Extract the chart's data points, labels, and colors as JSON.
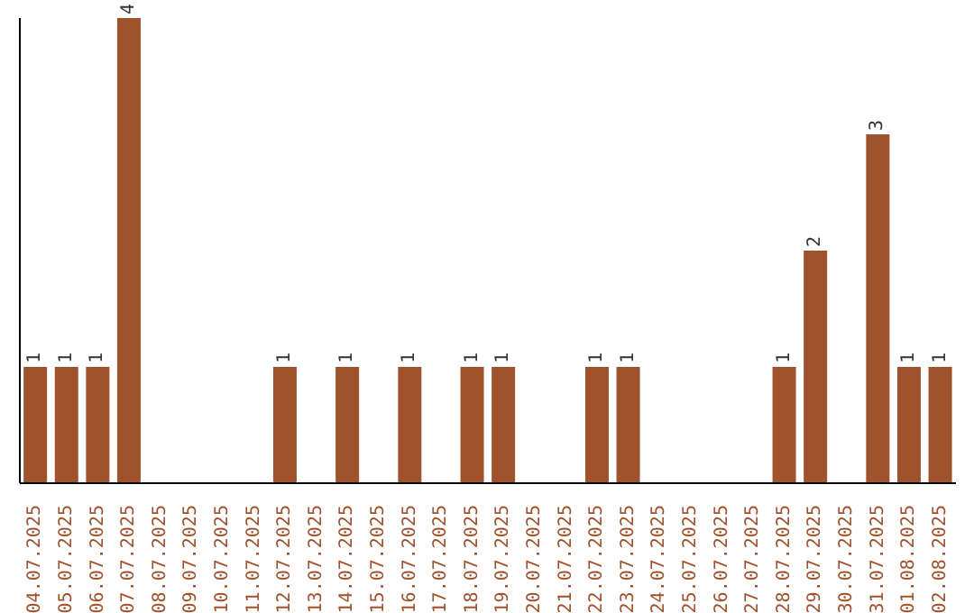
{
  "chart_data": {
    "type": "bar",
    "categories": [
      "04.07.2025",
      "05.07.2025",
      "06.07.2025",
      "07.07.2025",
      "08.07.2025",
      "09.07.2025",
      "10.07.2025",
      "11.07.2025",
      "12.07.2025",
      "13.07.2025",
      "14.07.2025",
      "15.07.2025",
      "16.07.2025",
      "17.07.2025",
      "18.07.2025",
      "19.07.2025",
      "20.07.2025",
      "21.07.2025",
      "22.07.2025",
      "23.07.2025",
      "24.07.2025",
      "25.07.2025",
      "26.07.2025",
      "27.07.2025",
      "28.07.2025",
      "29.07.2025",
      "30.07.2025",
      "31.07.2025",
      "01.08.2025",
      "02.08.2025"
    ],
    "values": [
      1,
      1,
      1,
      4,
      0,
      0,
      0,
      0,
      1,
      0,
      1,
      0,
      1,
      0,
      1,
      1,
      0,
      0,
      1,
      1,
      0,
      0,
      0,
      0,
      1,
      2,
      0,
      3,
      1,
      1
    ],
    "value_labels": [
      "1",
      "1",
      "1",
      "4",
      null,
      null,
      null,
      null,
      "1",
      null,
      "1",
      null,
      "1",
      null,
      "1",
      "1",
      null,
      null,
      "1",
      "1",
      null,
      null,
      null,
      null,
      "1",
      "2",
      null,
      "3",
      "1",
      "1"
    ],
    "color": "#a0522d",
    "tick_labels": "x"
  }
}
